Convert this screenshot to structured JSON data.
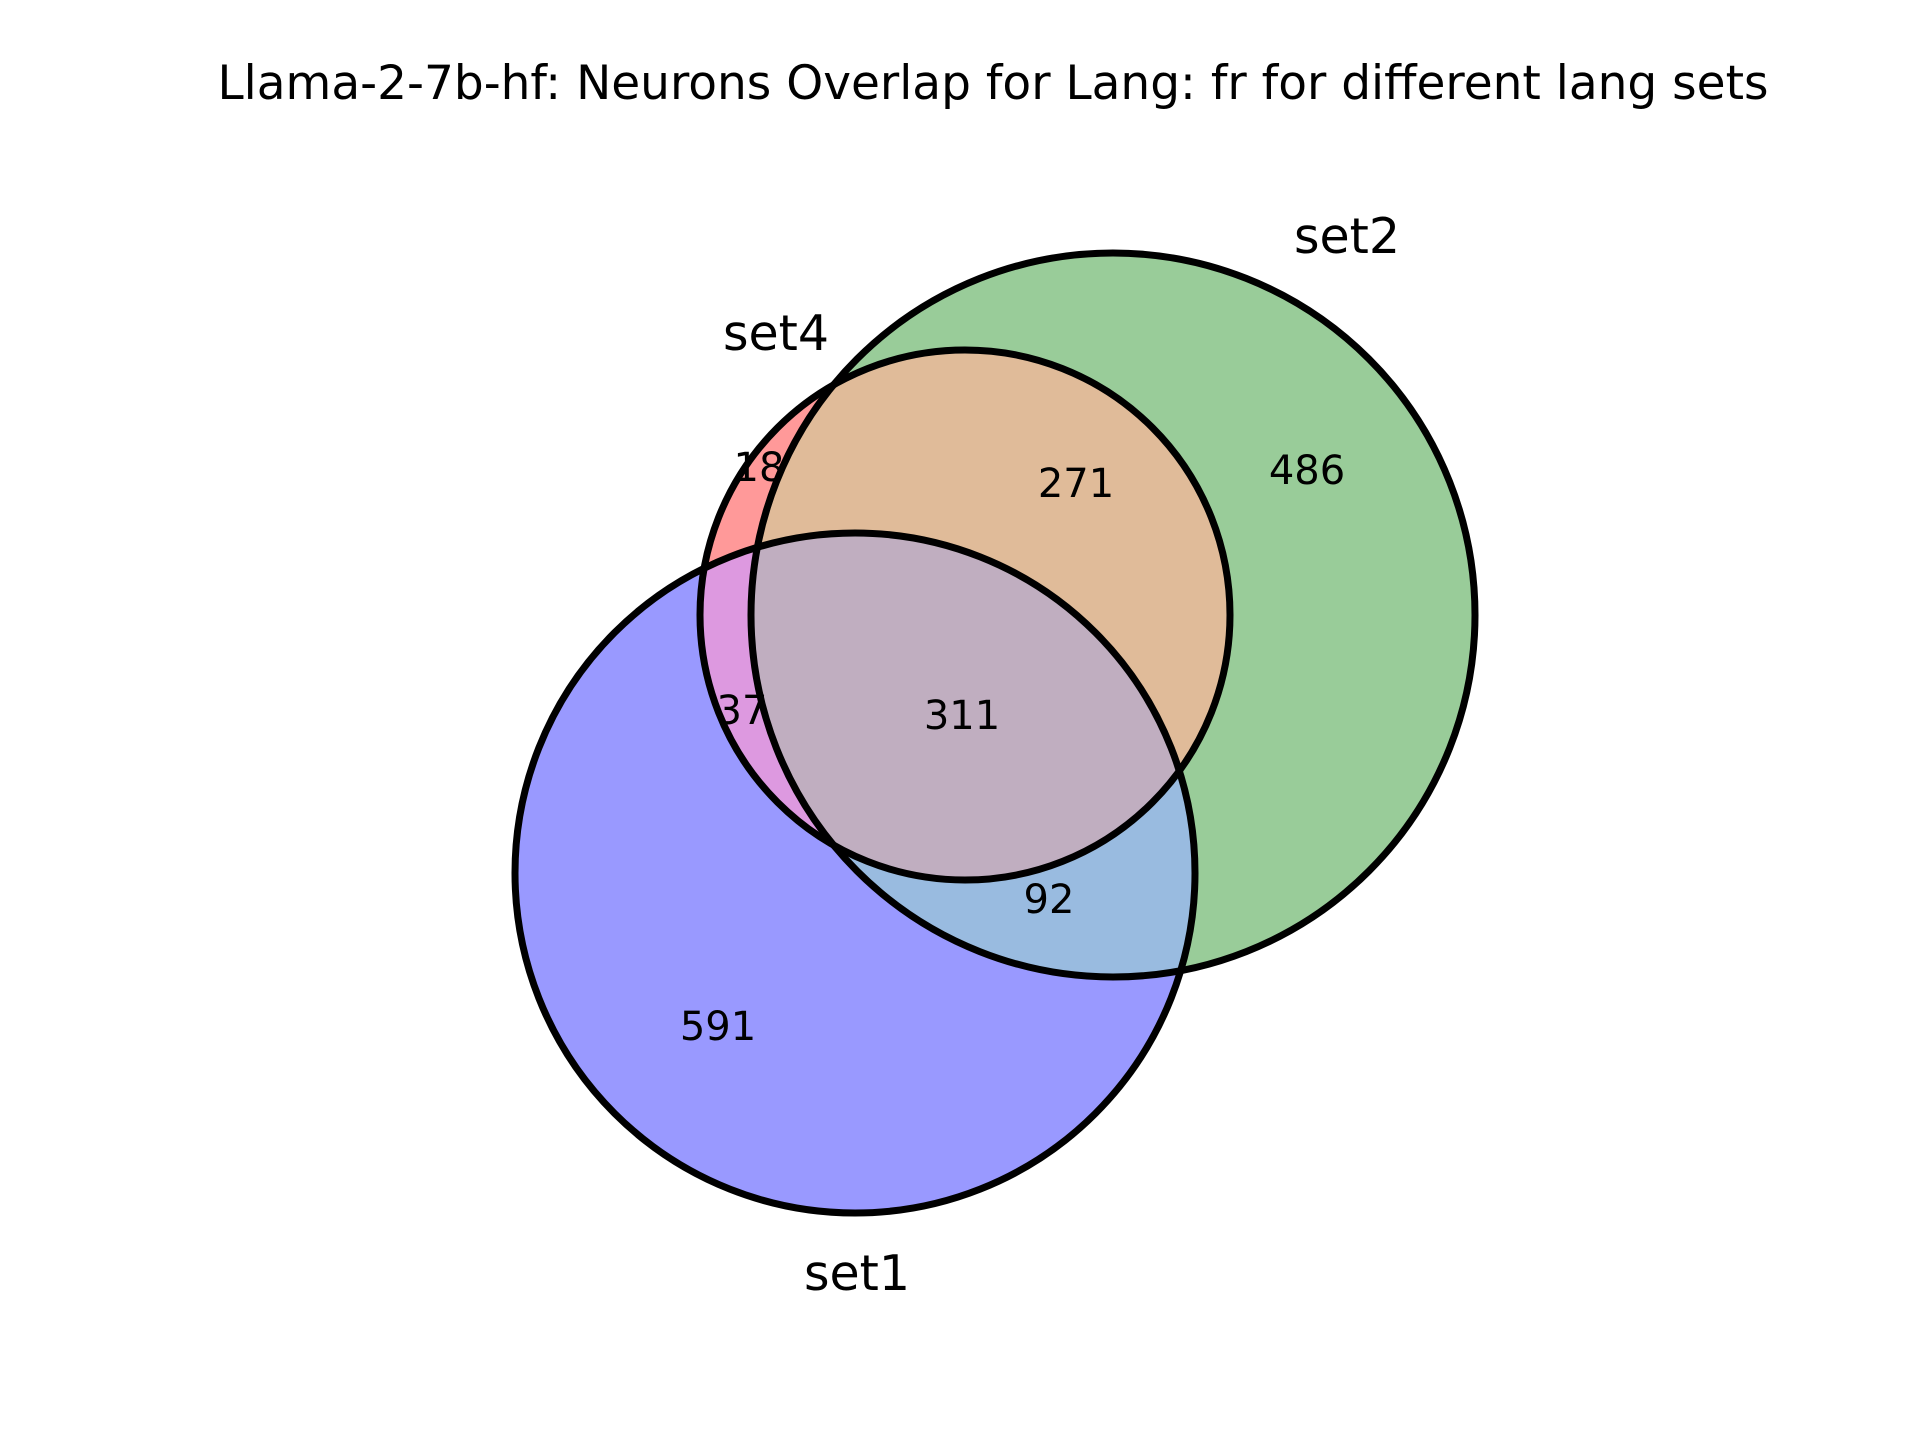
{
  "title": "Llama-2-7b-hf: Neurons Overlap for Lang: fr for different lang sets",
  "sets": [
    {
      "id": "set1",
      "label": "set1",
      "color": "#0000ff"
    },
    {
      "id": "set2",
      "label": "set2",
      "color": "#008000"
    },
    {
      "id": "set4",
      "label": "set4",
      "color": "#ff0000"
    }
  ],
  "regions": [
    {
      "sets": [
        "set1"
      ],
      "count": "591",
      "color": "#9999ff"
    },
    {
      "sets": [
        "set2"
      ],
      "count": "486",
      "color": "#99cc99"
    },
    {
      "sets": [
        "set4"
      ],
      "count": "18",
      "color": "#ff9999"
    },
    {
      "sets": [
        "set1",
        "set2"
      ],
      "count": "92",
      "color": "#99bbe0"
    },
    {
      "sets": [
        "set2",
        "set4"
      ],
      "count": "271",
      "color": "#e0bb99"
    },
    {
      "sets": [
        "set1",
        "set4"
      ],
      "count": "37",
      "color": "#dd99e0"
    },
    {
      "sets": [
        "set1",
        "set2",
        "set4"
      ],
      "count": "311",
      "color": "#c0aec0"
    }
  ]
}
